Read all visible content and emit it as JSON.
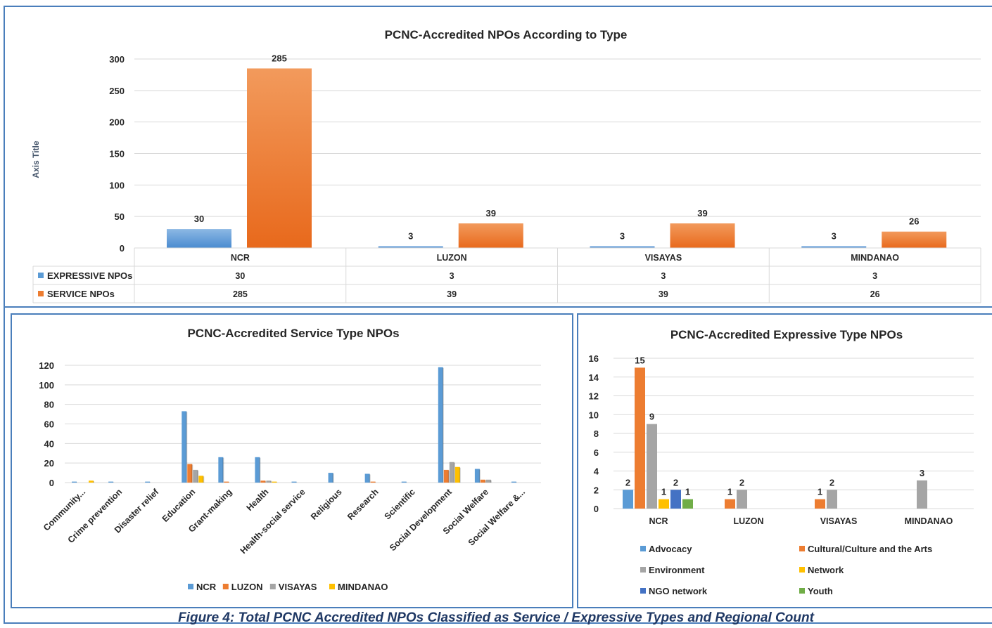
{
  "caption": "Figure 4: Total PCNC Accredited NPOs Classified as Service / Expressive Types and Regional Count",
  "colors": {
    "blue": "#5b9bd5",
    "orange": "#ed7d31",
    "gray": "#a5a5a5",
    "yellow": "#ffc000",
    "darkblue": "#4472c4",
    "green": "#70ad47"
  },
  "chart_data": [
    {
      "type": "bar",
      "title": "PCNC-Accredited NPOs According to Type",
      "ylabel": "Axis Title",
      "xlabel": "",
      "ylim": [
        0,
        300
      ],
      "yticks": [
        0,
        50,
        100,
        150,
        200,
        250,
        300
      ],
      "categories": [
        "NCR",
        "LUZON",
        "VISAYAS",
        "MINDANAO"
      ],
      "series": [
        {
          "name": "EXPRESSIVE NPOs",
          "values": [
            30,
            3,
            3,
            3
          ],
          "color": "#5b9bd5"
        },
        {
          "name": "SERVICE NPOs",
          "values": [
            285,
            39,
            39,
            26
          ],
          "color": "#ed7d31"
        }
      ],
      "data_table": true,
      "grid": true
    },
    {
      "type": "bar",
      "title": "PCNC-Accredited Service Type NPOs",
      "xlabel": "",
      "ylabel": "",
      "ylim": [
        0,
        120
      ],
      "yticks": [
        0,
        20,
        40,
        60,
        80,
        100,
        120
      ],
      "categories": [
        "Community...",
        "Crime prevention",
        "Disaster relief",
        "Education",
        "Grant-making",
        "Health",
        "Health-social service",
        "Religious",
        "Research",
        "Scientific",
        "Social Development",
        "Social Welfare",
        "Social Welfare &..."
      ],
      "series": [
        {
          "name": "NCR",
          "values": [
            1,
            1,
            1,
            73,
            26,
            26,
            1,
            10,
            9,
            1,
            118,
            14,
            1
          ],
          "color": "#5b9bd5"
        },
        {
          "name": "LUZON",
          "values": [
            0,
            0,
            0,
            19,
            1,
            2,
            0,
            0,
            1,
            0,
            13,
            3,
            0
          ],
          "color": "#ed7d31"
        },
        {
          "name": "VISAYAS",
          "values": [
            0,
            0,
            0,
            13,
            0,
            2,
            0,
            0,
            0,
            0,
            21,
            3,
            0
          ],
          "color": "#a5a5a5"
        },
        {
          "name": "MINDANAO",
          "values": [
            2,
            0,
            0,
            7,
            0,
            1,
            0,
            0,
            0,
            0,
            16,
            0,
            0
          ],
          "color": "#ffc000"
        }
      ],
      "legend": "bottom",
      "grid": true
    },
    {
      "type": "bar",
      "title": "PCNC-Accredited Expressive Type NPOs",
      "xlabel": "",
      "ylabel": "",
      "ylim": [
        0,
        16
      ],
      "yticks": [
        0,
        2,
        4,
        6,
        8,
        10,
        12,
        14,
        16
      ],
      "categories": [
        "NCR",
        "LUZON",
        "VISAYAS",
        "MINDANAO"
      ],
      "series": [
        {
          "name": "Advocacy",
          "values": [
            2,
            null,
            null,
            null
          ],
          "color": "#5b9bd5"
        },
        {
          "name": "Cultural/Culture and the Arts",
          "values": [
            15,
            1,
            1,
            null
          ],
          "color": "#ed7d31"
        },
        {
          "name": "Environment",
          "values": [
            9,
            2,
            2,
            3
          ],
          "color": "#a5a5a5"
        },
        {
          "name": "Network",
          "values": [
            1,
            null,
            null,
            null
          ],
          "color": "#ffc000"
        },
        {
          "name": "NGO network",
          "values": [
            2,
            null,
            null,
            null
          ],
          "color": "#4472c4"
        },
        {
          "name": "Youth",
          "values": [
            1,
            null,
            null,
            null
          ],
          "color": "#70ad47"
        }
      ],
      "legend": "bottom",
      "grid": true
    }
  ]
}
